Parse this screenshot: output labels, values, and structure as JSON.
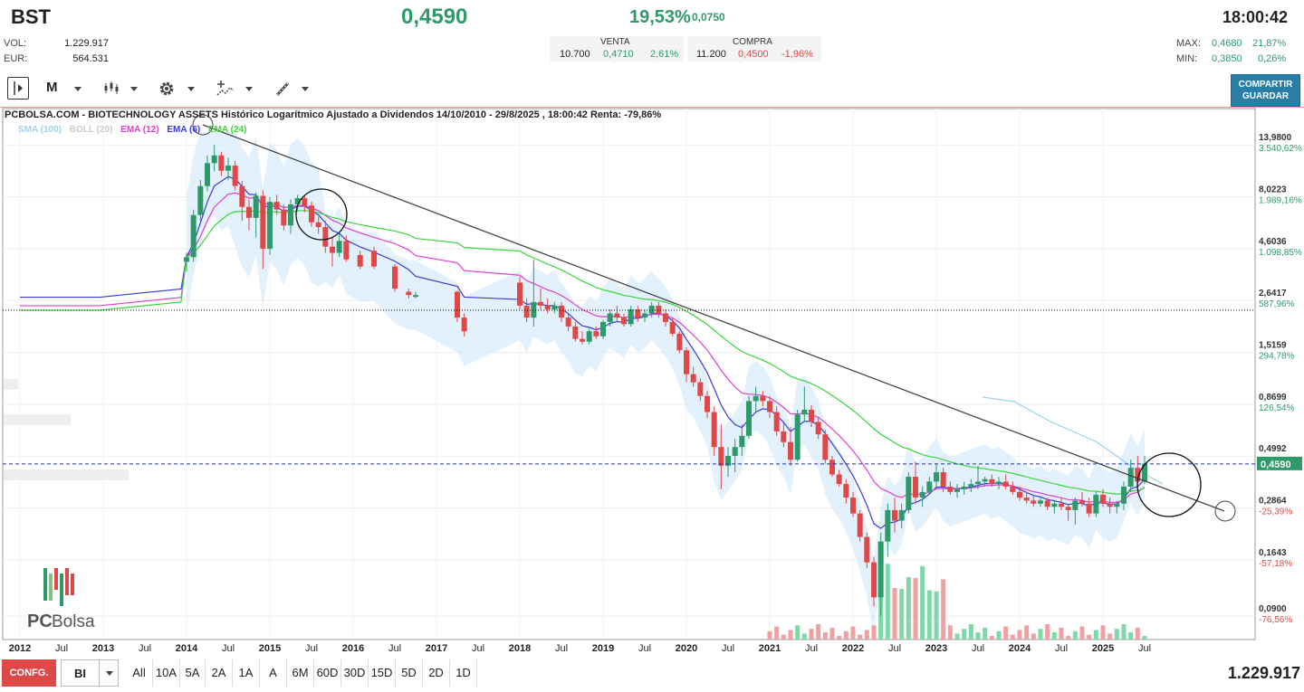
{
  "header": {
    "ticker": "BST",
    "last": "0,4590",
    "change_pct": "19,53%",
    "change_abs": "0,0750",
    "time": "18:00:42",
    "vol_label": "VOL:",
    "vol_value": "1.229.917",
    "eur_label": "EUR:",
    "eur_value": "564.531",
    "venta_label": "VENTA",
    "venta_qty": "10.700",
    "venta_price": "0,4710",
    "venta_pct": "2,61%",
    "compra_label": "COMPRA",
    "compra_qty": "11.200",
    "compra_price": "0,4500",
    "compra_pct": "-1,96%",
    "max_label": "MAX:",
    "max_value": "0,4680",
    "max_pct": "21,87%",
    "min_label": "MIN:",
    "min_value": "0,3850",
    "min_pct": "0,26%"
  },
  "toolbar": {
    "period_label": "M",
    "share_label_1": "COMPARTIR",
    "share_label_2": "GUARDAR"
  },
  "chart_title": "PCBOLSA.COM - BIOTECHNOLOGY ASSETS Histórico Logarítmico Ajustado a Dividendos 14/10/2010 - 29/8/2025 , 18:00:42 Renta: -79,86%",
  "legend": {
    "sma": "SMA (100)",
    "boll": "BOLL (20)",
    "ema12": "EMA (12)",
    "ema6": "EMA (6)",
    "ema24": "EMA (24)"
  },
  "logo_text_1": "PC",
  "logo_text_2": "Bolsa",
  "colors": {
    "up": "#2e9a6a",
    "down": "#e04848",
    "ema6": "#3a3ad6",
    "ema12": "#e040d0",
    "ema24": "#3ad63a",
    "boll_fill": "#d8ecfa",
    "sma": "#9fd0ee"
  },
  "chart_data": {
    "type": "candlestick",
    "scale": "log",
    "ylim": [
      0.07,
      17.0
    ],
    "price_ticks": [
      {
        "price": "13,9800",
        "pct": "3.540,62%",
        "pct_color": "up"
      },
      {
        "price": "8,0223",
        "pct": "1.989,16%",
        "pct_color": "up"
      },
      {
        "price": "4,6036",
        "pct": "1.098,85%",
        "pct_color": "up"
      },
      {
        "price": "2,6417",
        "pct": "587,96%",
        "pct_color": "up"
      },
      {
        "price": "1,5159",
        "pct": "294,78%",
        "pct_color": "up"
      },
      {
        "price": "0,8699",
        "pct": "126,54%",
        "pct_color": "up"
      },
      {
        "price": "0,4992",
        "pct": "",
        "pct_color": "up"
      },
      {
        "price": "0,2864",
        "pct": "-25,39%",
        "pct_color": "down"
      },
      {
        "price": "0,1643",
        "pct": "-57,18%",
        "pct_color": "down"
      },
      {
        "price": "0,0900",
        "pct": "-76,56%",
        "pct_color": "down"
      }
    ],
    "last_price_label": "0,4590",
    "last_price": 0.459,
    "reference_price": 2.38,
    "time_labels": [
      "2012",
      "Jul",
      "2013",
      "Jul",
      "2014",
      "Jul",
      "2015",
      "Jul",
      "2016",
      "Jul",
      "2017",
      "Jul",
      "2018",
      "Jul",
      "2019",
      "Jul",
      "2020",
      "Jul",
      "2021",
      "Jul",
      "2022",
      "Jul",
      "2023",
      "Jul",
      "2024",
      "Jul",
      "2025",
      "Jul"
    ],
    "candles": [
      [
        "2014-01",
        4.0,
        4.4,
        3.6,
        4.2
      ],
      [
        "2014-02",
        4.2,
        7.0,
        4.0,
        6.6
      ],
      [
        "2014-03",
        6.6,
        9.6,
        6.2,
        9.0
      ],
      [
        "2014-04",
        9.0,
        12.5,
        8.5,
        11.5
      ],
      [
        "2014-05",
        11.5,
        13.98,
        10.5,
        12.5
      ],
      [
        "2014-06",
        12.5,
        13.0,
        10.0,
        10.6
      ],
      [
        "2014-07",
        10.6,
        12.2,
        9.6,
        11.2
      ],
      [
        "2014-08",
        11.2,
        11.8,
        8.6,
        9.0
      ],
      [
        "2014-09",
        9.0,
        9.5,
        6.2,
        7.2
      ],
      [
        "2014-10",
        7.2,
        7.8,
        5.6,
        6.4
      ],
      [
        "2014-11",
        6.4,
        8.4,
        5.2,
        8.1
      ],
      [
        "2014-12",
        8.1,
        8.6,
        3.7,
        4.6
      ],
      [
        "2015-01",
        4.6,
        8.0,
        4.3,
        7.6
      ],
      [
        "2015-02",
        7.6,
        8.2,
        6.6,
        7.0
      ],
      [
        "2015-03",
        7.0,
        7.4,
        5.6,
        5.9
      ],
      [
        "2015-04",
        5.9,
        7.8,
        5.4,
        7.4
      ],
      [
        "2015-05",
        7.4,
        8.2,
        6.9,
        7.9
      ],
      [
        "2015-06",
        7.9,
        8.1,
        6.8,
        7.3
      ],
      [
        "2015-07",
        7.3,
        7.6,
        5.8,
        6.1
      ],
      [
        "2015-08",
        6.1,
        6.5,
        5.4,
        5.8
      ],
      [
        "2015-09",
        5.8,
        6.2,
        4.4,
        4.7
      ],
      [
        "2015-10",
        4.7,
        5.2,
        3.8,
        4.4
      ],
      [
        "2015-11",
        4.4,
        5.4,
        4.2,
        5.0
      ],
      [
        "2015-12",
        5.0,
        5.3,
        4.0,
        4.1
      ],
      [
        "2016-02",
        4.3,
        4.5,
        3.7,
        3.8
      ],
      [
        "2016-04",
        4.5,
        4.7,
        3.7,
        3.8
      ],
      [
        "2016-07",
        3.8,
        3.9,
        2.9,
        3.0
      ],
      [
        "2016-09",
        2.9,
        3.0,
        2.7,
        2.8
      ],
      [
        "2016-10",
        2.8,
        2.9,
        2.7,
        2.8
      ],
      [
        "2017-04",
        2.9,
        2.95,
        2.1,
        2.2
      ],
      [
        "2017-05",
        2.2,
        2.3,
        1.8,
        1.9
      ],
      [
        "2018-01",
        3.2,
        3.4,
        2.4,
        2.5
      ],
      [
        "2018-02",
        2.5,
        2.7,
        2.1,
        2.2
      ],
      [
        "2018-03",
        2.2,
        4.1,
        2.0,
        2.6
      ],
      [
        "2018-04",
        2.6,
        3.0,
        2.4,
        2.5
      ],
      [
        "2018-05",
        2.5,
        2.7,
        2.3,
        2.4
      ],
      [
        "2018-06",
        2.4,
        2.6,
        2.3,
        2.5
      ],
      [
        "2018-07",
        2.5,
        2.6,
        2.1,
        2.2
      ],
      [
        "2018-08",
        2.2,
        2.3,
        1.9,
        2.0
      ],
      [
        "2018-09",
        2.0,
        2.1,
        1.7,
        1.75
      ],
      [
        "2018-10",
        1.75,
        1.9,
        1.65,
        1.7
      ],
      [
        "2018-11",
        1.7,
        1.95,
        1.65,
        1.9
      ],
      [
        "2018-12",
        1.9,
        2.0,
        1.75,
        1.8
      ],
      [
        "2019-01",
        1.8,
        2.15,
        1.75,
        2.1
      ],
      [
        "2019-02",
        2.1,
        2.4,
        2.0,
        2.3
      ],
      [
        "2019-03",
        2.3,
        2.5,
        2.1,
        2.2
      ],
      [
        "2019-04",
        2.2,
        2.3,
        2.0,
        2.05
      ],
      [
        "2019-05",
        2.05,
        2.5,
        2.0,
        2.4
      ],
      [
        "2019-06",
        2.4,
        2.5,
        2.1,
        2.2
      ],
      [
        "2019-07",
        2.2,
        2.4,
        2.1,
        2.3
      ],
      [
        "2019-08",
        2.3,
        2.6,
        2.2,
        2.5
      ],
      [
        "2019-09",
        2.5,
        2.6,
        2.2,
        2.3
      ],
      [
        "2019-10",
        2.3,
        2.4,
        2.0,
        2.1
      ],
      [
        "2019-11",
        2.1,
        2.2,
        1.8,
        1.85
      ],
      [
        "2019-12",
        1.85,
        1.9,
        1.5,
        1.55
      ],
      [
        "2020-01",
        1.55,
        1.6,
        1.1,
        1.2
      ],
      [
        "2020-02",
        1.2,
        1.3,
        1.05,
        1.1
      ],
      [
        "2020-03",
        1.1,
        1.15,
        0.9,
        0.95
      ],
      [
        "2020-04",
        0.95,
        1.0,
        0.75,
        0.8
      ],
      [
        "2020-05",
        0.8,
        0.85,
        0.5,
        0.55
      ],
      [
        "2020-06",
        0.55,
        0.7,
        0.35,
        0.45
      ],
      [
        "2020-07",
        0.45,
        0.55,
        0.4,
        0.5
      ],
      [
        "2020-08",
        0.5,
        0.6,
        0.42,
        0.55
      ],
      [
        "2020-09",
        0.55,
        0.7,
        0.5,
        0.62
      ],
      [
        "2020-10",
        0.62,
        0.95,
        0.6,
        0.9
      ],
      [
        "2020-11",
        0.9,
        1.05,
        0.8,
        0.95
      ],
      [
        "2020-12",
        0.95,
        1.0,
        0.85,
        0.9
      ],
      [
        "2021-01",
        0.9,
        0.95,
        0.75,
        0.8
      ],
      [
        "2021-02",
        0.8,
        0.85,
        0.62,
        0.65
      ],
      [
        "2021-03",
        0.65,
        0.72,
        0.55,
        0.58
      ],
      [
        "2021-04",
        0.58,
        0.68,
        0.45,
        0.48
      ],
      [
        "2021-05",
        0.48,
        0.82,
        0.47,
        0.78
      ],
      [
        "2021-06",
        0.78,
        1.05,
        0.72,
        0.82
      ],
      [
        "2021-07",
        0.82,
        0.86,
        0.68,
        0.72
      ],
      [
        "2021-08",
        0.72,
        0.76,
        0.6,
        0.63
      ],
      [
        "2021-09",
        0.63,
        0.66,
        0.46,
        0.48
      ],
      [
        "2021-10",
        0.48,
        0.5,
        0.4,
        0.41
      ],
      [
        "2021-11",
        0.41,
        0.43,
        0.36,
        0.37
      ],
      [
        "2021-12",
        0.37,
        0.39,
        0.3,
        0.32
      ],
      [
        "2022-01",
        0.32,
        0.34,
        0.26,
        0.27
      ],
      [
        "2022-02",
        0.27,
        0.28,
        0.2,
        0.21
      ],
      [
        "2022-03",
        0.21,
        0.22,
        0.15,
        0.16
      ],
      [
        "2022-04",
        0.16,
        0.17,
        0.1,
        0.11
      ],
      [
        "2022-05",
        0.11,
        0.22,
        0.09,
        0.2
      ],
      [
        "2022-06",
        0.2,
        0.3,
        0.17,
        0.28
      ],
      [
        "2022-07",
        0.28,
        0.32,
        0.22,
        0.25
      ],
      [
        "2022-08",
        0.25,
        0.3,
        0.23,
        0.28
      ],
      [
        "2022-09",
        0.28,
        0.42,
        0.27,
        0.4
      ],
      [
        "2022-10",
        0.4,
        0.47,
        0.3,
        0.32
      ],
      [
        "2022-11",
        0.32,
        0.36,
        0.29,
        0.34
      ],
      [
        "2022-12",
        0.34,
        0.4,
        0.33,
        0.38
      ],
      [
        "2023-01",
        0.38,
        0.46,
        0.36,
        0.42
      ],
      [
        "2023-02",
        0.42,
        0.44,
        0.34,
        0.36
      ],
      [
        "2023-03",
        0.36,
        0.38,
        0.33,
        0.34
      ],
      [
        "2023-04",
        0.34,
        0.37,
        0.32,
        0.35
      ],
      [
        "2023-05",
        0.35,
        0.38,
        0.33,
        0.36
      ],
      [
        "2023-06",
        0.36,
        0.39,
        0.34,
        0.37
      ],
      [
        "2023-07",
        0.37,
        0.45,
        0.35,
        0.38
      ],
      [
        "2023-08",
        0.38,
        0.4,
        0.36,
        0.39
      ],
      [
        "2023-09",
        0.39,
        0.41,
        0.36,
        0.37
      ],
      [
        "2023-10",
        0.37,
        0.4,
        0.35,
        0.38
      ],
      [
        "2023-11",
        0.38,
        0.41,
        0.35,
        0.36
      ],
      [
        "2023-12",
        0.36,
        0.38,
        0.33,
        0.34
      ],
      [
        "2024-01",
        0.34,
        0.36,
        0.31,
        0.32
      ],
      [
        "2024-02",
        0.32,
        0.34,
        0.3,
        0.31
      ],
      [
        "2024-03",
        0.31,
        0.33,
        0.29,
        0.3
      ],
      [
        "2024-04",
        0.3,
        0.32,
        0.29,
        0.31
      ],
      [
        "2024-05",
        0.31,
        0.32,
        0.28,
        0.29
      ],
      [
        "2024-06",
        0.29,
        0.31,
        0.27,
        0.3
      ],
      [
        "2024-07",
        0.3,
        0.32,
        0.28,
        0.29
      ],
      [
        "2024-08",
        0.29,
        0.3,
        0.25,
        0.28
      ],
      [
        "2024-09",
        0.28,
        0.32,
        0.24,
        0.31
      ],
      [
        "2024-10",
        0.31,
        0.34,
        0.29,
        0.3
      ],
      [
        "2024-11",
        0.3,
        0.32,
        0.26,
        0.27
      ],
      [
        "2024-12",
        0.27,
        0.34,
        0.26,
        0.33
      ],
      [
        "2025-01",
        0.33,
        0.35,
        0.29,
        0.3
      ],
      [
        "2025-02",
        0.3,
        0.32,
        0.27,
        0.29
      ],
      [
        "2025-03",
        0.29,
        0.31,
        0.27,
        0.3
      ],
      [
        "2025-04",
        0.3,
        0.38,
        0.28,
        0.36
      ],
      [
        "2025-05",
        0.36,
        0.48,
        0.34,
        0.44
      ],
      [
        "2025-06",
        0.44,
        0.5,
        0.36,
        0.38
      ],
      [
        "2025-07",
        0.38,
        0.5,
        0.37,
        0.46
      ]
    ]
  },
  "periods": [
    "All",
    "10A",
    "5A",
    "2A",
    "1A",
    "A",
    "6M",
    "60D",
    "30D",
    "15D",
    "5D",
    "2D",
    "1D"
  ],
  "bottom": {
    "config_label": "CONFG.",
    "select_value": "BI",
    "volume_total": "1.229.917"
  }
}
